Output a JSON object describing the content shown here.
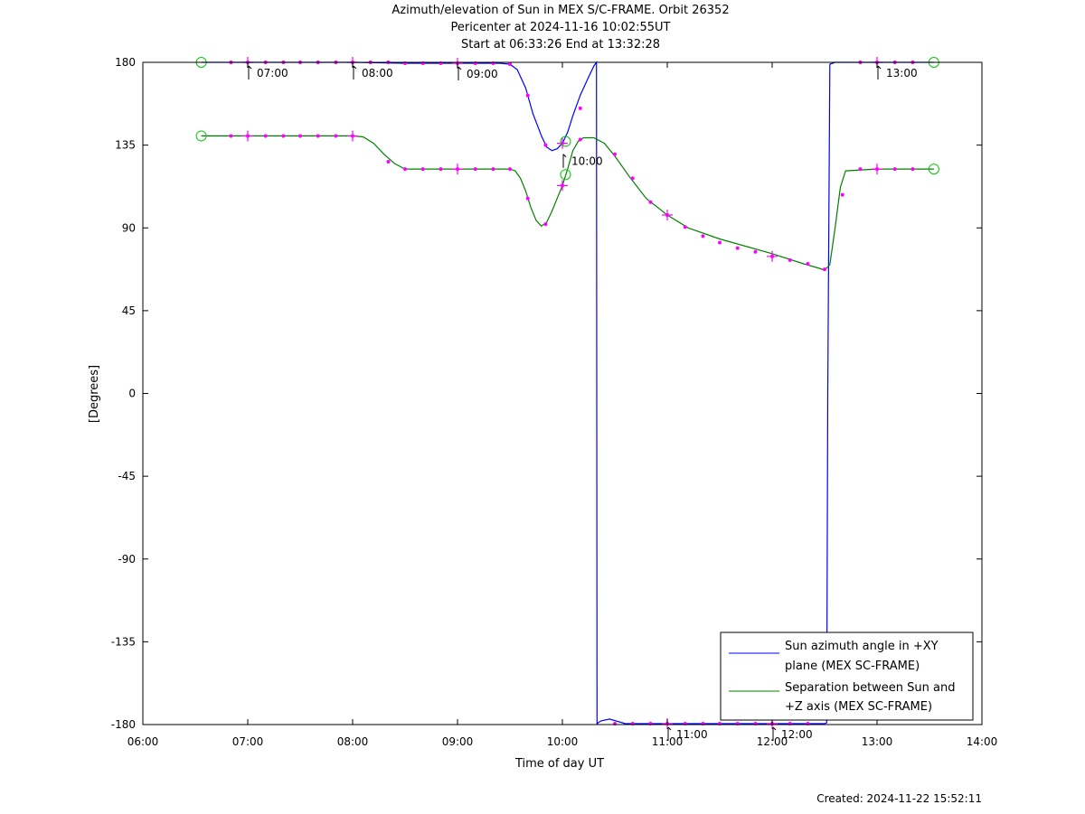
{
  "page": {
    "title_lines": [
      "Azimuth/elevation of Sun in MEX S/C-FRAME.  Orbit 26352",
      "Pericenter at 2024-11-16 10:02:55UT",
      "Start at 06:33:26 End at 13:32:28"
    ],
    "created": "Created: 2024-11-22 15:52:11"
  },
  "chart_data": {
    "type": "line",
    "xlabel": "Time of day UT",
    "ylabel": "[Degrees]",
    "xlim": [
      6.0,
      14.0
    ],
    "ylim": [
      -180,
      180
    ],
    "xticks": [
      6,
      7,
      8,
      9,
      10,
      11,
      12,
      13,
      14
    ],
    "xtick_labels": [
      "06:00",
      "07:00",
      "08:00",
      "09:00",
      "10:00",
      "11:00",
      "12:00",
      "13:00",
      "14:00"
    ],
    "yticks": [
      180,
      135,
      90,
      45,
      0,
      -45,
      -90,
      -135,
      -180
    ],
    "ytick_labels": [
      "180",
      "135",
      "90",
      "45",
      "0",
      "-45",
      "-90",
      "-135",
      "-180"
    ],
    "grid": false,
    "legend_position": "bottom-right",
    "marker_color": "#ff00ff",
    "endpoint_marker_color": "#00cc00",
    "series": [
      {
        "name": "Sun azimuth angle in +XY plane (MEX SC-FRAME)",
        "legend_lines": [
          "Sun azimuth angle in +XY",
          "plane (MEX SC-FRAME)"
        ],
        "color": "#0000ff",
        "x": [
          6.557,
          6.9,
          7.0,
          7.5,
          8.0,
          8.5,
          9.0,
          9.4,
          9.5,
          9.57,
          9.65,
          9.72,
          9.8,
          9.85,
          9.9,
          9.95,
          10.0,
          10.05,
          10.1,
          10.17,
          10.25,
          10.3,
          10.325,
          10.33,
          10.34,
          10.37,
          10.45,
          10.6,
          11.0,
          11.5,
          12.0,
          12.2,
          12.5,
          12.52,
          12.53,
          12.55,
          12.6,
          13.0,
          13.2,
          13.542
        ],
        "y": [
          180,
          180,
          180,
          180,
          180,
          179.5,
          179.5,
          179.5,
          179,
          176,
          166,
          152,
          140,
          134,
          132,
          133,
          136,
          142,
          151,
          162,
          172,
          178,
          180,
          -180,
          -179,
          -178,
          -177,
          -179.5,
          -179.5,
          -179.5,
          -179.5,
          -179.5,
          -179.5,
          -179,
          0,
          179,
          180,
          180,
          180,
          180
        ]
      },
      {
        "name": "Separation between Sun and +Z axis (MEX SC-FRAME)",
        "legend_lines": [
          "Separation between Sun and",
          "+Z axis (MEX SC-FRAME)"
        ],
        "color": "#008000",
        "x": [
          6.557,
          7.0,
          7.5,
          8.0,
          8.1,
          8.2,
          8.3,
          8.4,
          8.5,
          9.0,
          9.5,
          9.55,
          9.6,
          9.65,
          9.7,
          9.75,
          9.8,
          9.85,
          9.9,
          9.95,
          10.0,
          10.05,
          10.1,
          10.15,
          10.2,
          10.3,
          10.4,
          10.5,
          10.65,
          10.8,
          11.0,
          11.2,
          11.5,
          12.0,
          12.3,
          12.45,
          12.5,
          12.55,
          12.6,
          12.65,
          12.7,
          13.0,
          13.542
        ],
        "y": [
          140,
          140,
          140,
          140,
          139.5,
          136,
          130,
          125,
          122,
          122,
          122,
          121,
          117,
          110,
          101,
          94,
          91,
          93,
          99,
          106,
          113,
          122,
          132,
          137,
          139,
          139,
          136,
          129,
          117,
          106,
          97,
          90,
          84,
          76,
          70.5,
          68,
          67,
          70,
          90,
          112,
          121,
          122,
          122
        ]
      }
    ],
    "markers": [
      {
        "x": 6.84,
        "y": 180
      },
      {
        "x": 7.0,
        "y": 180
      },
      {
        "x": 7.17,
        "y": 180
      },
      {
        "x": 7.34,
        "y": 180
      },
      {
        "x": 7.5,
        "y": 180
      },
      {
        "x": 7.67,
        "y": 180
      },
      {
        "x": 7.84,
        "y": 180
      },
      {
        "x": 8.0,
        "y": 180
      },
      {
        "x": 8.17,
        "y": 180
      },
      {
        "x": 8.34,
        "y": 180
      },
      {
        "x": 8.5,
        "y": 179.5
      },
      {
        "x": 8.67,
        "y": 179.5
      },
      {
        "x": 8.84,
        "y": 179.5
      },
      {
        "x": 9.0,
        "y": 179.5
      },
      {
        "x": 9.17,
        "y": 179.5
      },
      {
        "x": 9.34,
        "y": 179.5
      },
      {
        "x": 9.5,
        "y": 179
      },
      {
        "x": 9.67,
        "y": 162
      },
      {
        "x": 9.84,
        "y": 135
      },
      {
        "x": 10.0,
        "y": 136
      },
      {
        "x": 10.17,
        "y": 155
      },
      {
        "x": 10.5,
        "y": -179.5
      },
      {
        "x": 10.67,
        "y": -179.5
      },
      {
        "x": 10.84,
        "y": -179.5
      },
      {
        "x": 11.0,
        "y": -179.5
      },
      {
        "x": 11.17,
        "y": -179.5
      },
      {
        "x": 11.34,
        "y": -179.5
      },
      {
        "x": 11.5,
        "y": -179.5
      },
      {
        "x": 11.67,
        "y": -179.5
      },
      {
        "x": 11.84,
        "y": -179.5
      },
      {
        "x": 12.0,
        "y": -179.5
      },
      {
        "x": 12.17,
        "y": -179.5
      },
      {
        "x": 12.34,
        "y": -179.5
      },
      {
        "x": 12.84,
        "y": 180
      },
      {
        "x": 13.0,
        "y": 180
      },
      {
        "x": 13.17,
        "y": 180
      },
      {
        "x": 13.34,
        "y": 180
      },
      {
        "x": 6.84,
        "y": 140
      },
      {
        "x": 7.0,
        "y": 140
      },
      {
        "x": 7.17,
        "y": 140
      },
      {
        "x": 7.34,
        "y": 140
      },
      {
        "x": 7.5,
        "y": 140
      },
      {
        "x": 7.67,
        "y": 140
      },
      {
        "x": 7.84,
        "y": 140
      },
      {
        "x": 8.0,
        "y": 140
      },
      {
        "x": 8.34,
        "y": 126
      },
      {
        "x": 8.5,
        "y": 122
      },
      {
        "x": 8.67,
        "y": 122
      },
      {
        "x": 8.84,
        "y": 122
      },
      {
        "x": 9.0,
        "y": 122
      },
      {
        "x": 9.17,
        "y": 122
      },
      {
        "x": 9.34,
        "y": 122
      },
      {
        "x": 9.5,
        "y": 122
      },
      {
        "x": 9.67,
        "y": 106
      },
      {
        "x": 9.84,
        "y": 92
      },
      {
        "x": 10.0,
        "y": 113
      },
      {
        "x": 10.17,
        "y": 138
      },
      {
        "x": 10.5,
        "y": 130
      },
      {
        "x": 10.67,
        "y": 117
      },
      {
        "x": 10.84,
        "y": 104
      },
      {
        "x": 11.0,
        "y": 97
      },
      {
        "x": 11.17,
        "y": 90.5
      },
      {
        "x": 11.34,
        "y": 85.5
      },
      {
        "x": 11.5,
        "y": 82
      },
      {
        "x": 11.67,
        "y": 79
      },
      {
        "x": 11.84,
        "y": 77
      },
      {
        "x": 12.0,
        "y": 74.5
      },
      {
        "x": 12.17,
        "y": 72.5
      },
      {
        "x": 12.34,
        "y": 70.5
      },
      {
        "x": 12.5,
        "y": 67.5
      },
      {
        "x": 12.67,
        "y": 108
      },
      {
        "x": 12.84,
        "y": 122
      },
      {
        "x": 13.0,
        "y": 122
      },
      {
        "x": 13.17,
        "y": 122
      },
      {
        "x": 13.34,
        "y": 122
      }
    ],
    "hour_crosses": [
      {
        "x": 7.0,
        "y": 180
      },
      {
        "x": 8.0,
        "y": 180
      },
      {
        "x": 9.0,
        "y": 179.5
      },
      {
        "x": 10.0,
        "y": 136
      },
      {
        "x": 11.0,
        "y": -179.5
      },
      {
        "x": 12.0,
        "y": -179.5
      },
      {
        "x": 13.0,
        "y": 180
      },
      {
        "x": 7.0,
        "y": 140
      },
      {
        "x": 8.0,
        "y": 140
      },
      {
        "x": 9.0,
        "y": 122
      },
      {
        "x": 10.0,
        "y": 113
      },
      {
        "x": 11.0,
        "y": 97
      },
      {
        "x": 12.0,
        "y": 74.5
      },
      {
        "x": 13.0,
        "y": 122
      }
    ],
    "endpoint_circles": [
      {
        "x": 6.557,
        "y": 180
      },
      {
        "x": 13.542,
        "y": 180
      },
      {
        "x": 6.557,
        "y": 140
      },
      {
        "x": 13.542,
        "y": 122
      },
      {
        "x": 10.03,
        "y": 137
      },
      {
        "x": 10.03,
        "y": 119
      }
    ],
    "annotations": [
      {
        "text": "07:00",
        "x": 7.0,
        "y": 180
      },
      {
        "text": "08:00",
        "x": 8.0,
        "y": 180
      },
      {
        "text": "09:00",
        "x": 9.0,
        "y": 179.5
      },
      {
        "text": "10:00",
        "x": 10.0,
        "y": 132
      },
      {
        "text": "11:00",
        "x": 11.0,
        "y": -179.5
      },
      {
        "text": "12:00",
        "x": 12.0,
        "y": -179.5
      },
      {
        "text": "13:00",
        "x": 13.0,
        "y": 180
      }
    ]
  }
}
